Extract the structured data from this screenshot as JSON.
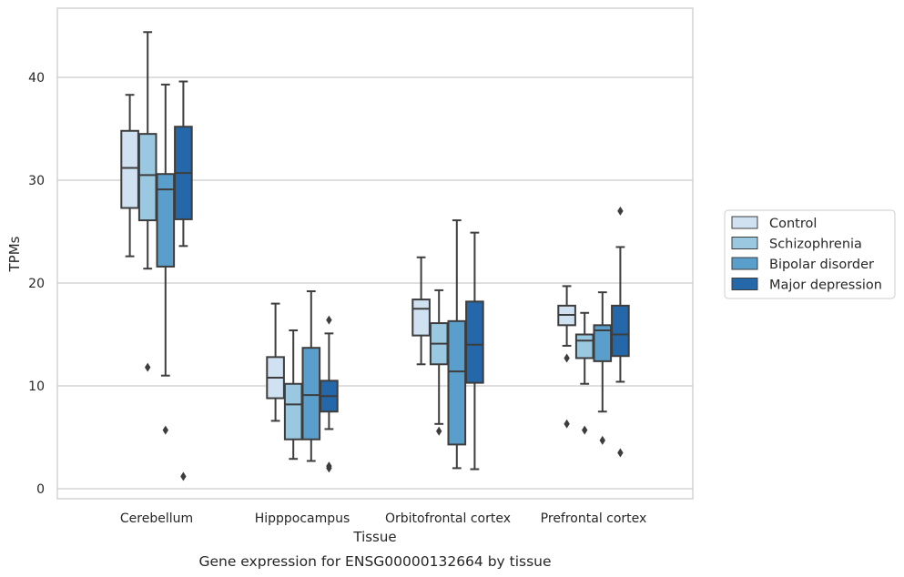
{
  "chart_data": {
    "type": "box",
    "xlabel": "Tissue",
    "ylabel": "TPMs",
    "caption": "Gene expression for ENSG00000132664 by tissue",
    "ylim": [
      -1,
      46
    ],
    "yticks": [
      0,
      10,
      20,
      30,
      40
    ],
    "grid": "horizontal",
    "legend_position": "right",
    "categories": [
      "Cerebellum",
      "Hipppocampus",
      "Orbitofrontal cortex",
      "Prefrontal cortex"
    ],
    "series": [
      {
        "name": "Control",
        "color": "#d0e1f2",
        "boxes": [
          {
            "whislo": 22.6,
            "q1": 27.3,
            "med": 31.2,
            "q3": 34.8,
            "whishi": 38.3,
            "fliers": []
          },
          {
            "whislo": 6.6,
            "q1": 8.8,
            "med": 10.8,
            "q3": 12.8,
            "whishi": 18.0,
            "fliers": []
          },
          {
            "whislo": 12.1,
            "q1": 14.9,
            "med": 17.5,
            "q3": 18.4,
            "whishi": 22.5,
            "fliers": []
          },
          {
            "whislo": 13.9,
            "q1": 15.9,
            "med": 16.9,
            "q3": 17.8,
            "whishi": 19.7,
            "fliers": [
              12.7,
              6.3
            ]
          }
        ]
      },
      {
        "name": "Schizophrenia",
        "color": "#9ac8e0",
        "boxes": [
          {
            "whislo": 21.4,
            "q1": 26.1,
            "med": 30.5,
            "q3": 34.5,
            "whishi": 44.4,
            "fliers": [
              11.8
            ]
          },
          {
            "whislo": 2.9,
            "q1": 4.8,
            "med": 8.2,
            "q3": 10.2,
            "whishi": 15.4,
            "fliers": []
          },
          {
            "whislo": 6.3,
            "q1": 12.1,
            "med": 14.1,
            "q3": 16.1,
            "whishi": 19.3,
            "fliers": [
              5.6
            ]
          },
          {
            "whislo": 10.2,
            "q1": 12.7,
            "med": 14.4,
            "q3": 15.0,
            "whishi": 17.1,
            "fliers": [
              5.7
            ]
          }
        ]
      },
      {
        "name": "Bipolar disorder",
        "color": "#5a9fcc",
        "boxes": [
          {
            "whislo": 11.0,
            "q1": 21.6,
            "med": 29.1,
            "q3": 30.6,
            "whishi": 39.3,
            "fliers": [
              5.7
            ]
          },
          {
            "whislo": 2.7,
            "q1": 4.8,
            "med": 9.1,
            "q3": 13.7,
            "whishi": 19.2,
            "fliers": []
          },
          {
            "whislo": 2.0,
            "q1": 4.3,
            "med": 11.4,
            "q3": 16.3,
            "whishi": 26.1,
            "fliers": []
          },
          {
            "whislo": 7.5,
            "q1": 12.4,
            "med": 15.4,
            "q3": 15.9,
            "whishi": 19.1,
            "fliers": [
              4.7
            ]
          }
        ]
      },
      {
        "name": "Major depression",
        "color": "#2468aa",
        "boxes": [
          {
            "whislo": 23.6,
            "q1": 26.2,
            "med": 30.7,
            "q3": 35.2,
            "whishi": 39.6,
            "fliers": [
              1.2
            ]
          },
          {
            "whislo": 5.8,
            "q1": 7.5,
            "med": 9.0,
            "q3": 10.5,
            "whishi": 15.1,
            "fliers": [
              16.4,
              2.2,
              2.0
            ]
          },
          {
            "whislo": 1.9,
            "q1": 10.3,
            "med": 14.0,
            "q3": 18.2,
            "whishi": 24.9,
            "fliers": []
          },
          {
            "whislo": 10.4,
            "q1": 12.9,
            "med": 15.0,
            "q3": 17.8,
            "whishi": 23.5,
            "fliers": [
              27.0,
              3.5
            ]
          }
        ]
      }
    ]
  }
}
